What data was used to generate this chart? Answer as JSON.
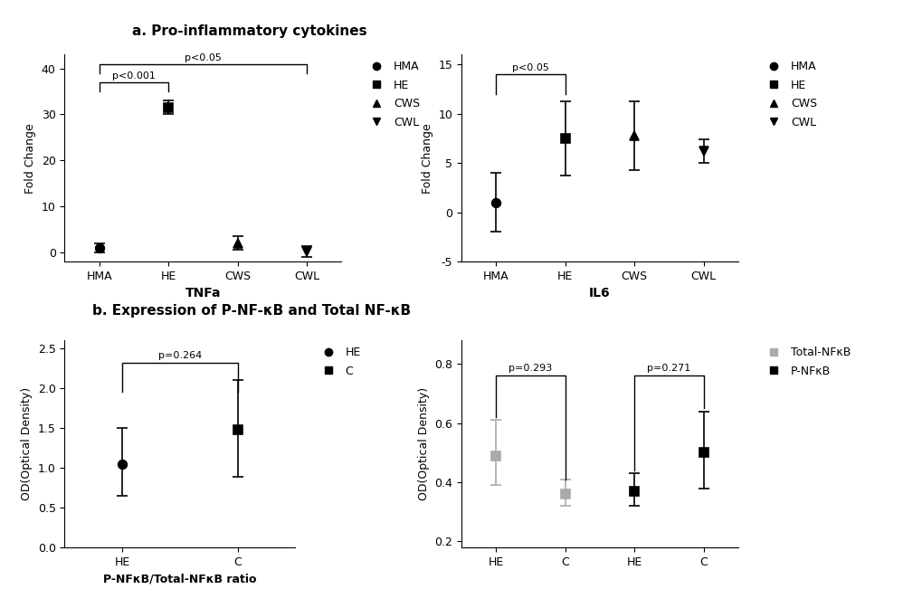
{
  "title_a": "a. Pro-inflammatory cytokines",
  "title_b": "b. Expression of P-NF-κB and Total NF-κB",
  "tnf_categories": [
    "HMA",
    "HE",
    "CWS",
    "CWL"
  ],
  "tnf_values": [
    1.0,
    31.5,
    2.0,
    0.2
  ],
  "tnf_errors": [
    1.0,
    1.5,
    1.5,
    1.2
  ],
  "tnf_markers": [
    "o",
    "s",
    "^",
    "v"
  ],
  "tnf_ylabel": "Fold Change",
  "tnf_xlabel": "TNFa",
  "tnf_ylim": [
    -2,
    43
  ],
  "tnf_yticks": [
    0,
    10,
    20,
    30,
    40
  ],
  "il6_categories": [
    "HMA",
    "HE",
    "CWS",
    "CWL"
  ],
  "il6_values": [
    1.0,
    7.5,
    7.8,
    6.2
  ],
  "il6_errors": [
    3.0,
    3.8,
    3.5,
    1.2
  ],
  "il6_markers": [
    "o",
    "s",
    "^",
    "v"
  ],
  "il6_ylabel": "Fold Change",
  "il6_xlabel": "IL6",
  "il6_ylim": [
    -5,
    16
  ],
  "il6_yticks": [
    -5,
    0,
    5,
    10,
    15
  ],
  "ratio_categories": [
    "HE",
    "C"
  ],
  "ratio_values": [
    1.05,
    1.48
  ],
  "ratio_errors_upper": [
    0.45,
    0.62
  ],
  "ratio_errors_lower": [
    0.4,
    0.6
  ],
  "ratio_markers": [
    "o",
    "s"
  ],
  "ratio_ylabel": "OD(Optical Density)",
  "ratio_xlabel": "P-NFκB/Total-NFκB ratio",
  "ratio_ylim": [
    0.0,
    2.6
  ],
  "ratio_yticks": [
    0.0,
    0.5,
    1.0,
    1.5,
    2.0,
    2.5
  ],
  "nfkb_values": [
    0.49,
    0.36,
    0.37,
    0.5
  ],
  "nfkb_errors_upper": [
    0.12,
    0.05,
    0.06,
    0.14
  ],
  "nfkb_errors_lower": [
    0.1,
    0.04,
    0.05,
    0.12
  ],
  "nfkb_colors": [
    "#aaaaaa",
    "#aaaaaa",
    "#000000",
    "#000000"
  ],
  "nfkb_ylabel": "OD(Optical Density)",
  "nfkb_ylim": [
    0.18,
    0.88
  ],
  "nfkb_yticks": [
    0.2,
    0.4,
    0.6,
    0.8
  ],
  "legend_ab_entries": [
    "HMA",
    "HE",
    "CWS",
    "CWL"
  ],
  "legend_ab_markers": [
    "o",
    "s",
    "^",
    "v"
  ],
  "legend_b_entries": [
    "HE",
    "C"
  ],
  "legend_b_markers": [
    "o",
    "s"
  ],
  "legend_nfkb_entries": [
    "Total-NFκB",
    "P-NFκB"
  ],
  "legend_nfkb_colors": [
    "#aaaaaa",
    "#000000"
  ],
  "color_black": "#000000",
  "font_size": 9,
  "title_font_size": 11,
  "marker_size": 7,
  "capsize": 4,
  "linewidth": 1.2,
  "sig_linewidth": 1.0
}
